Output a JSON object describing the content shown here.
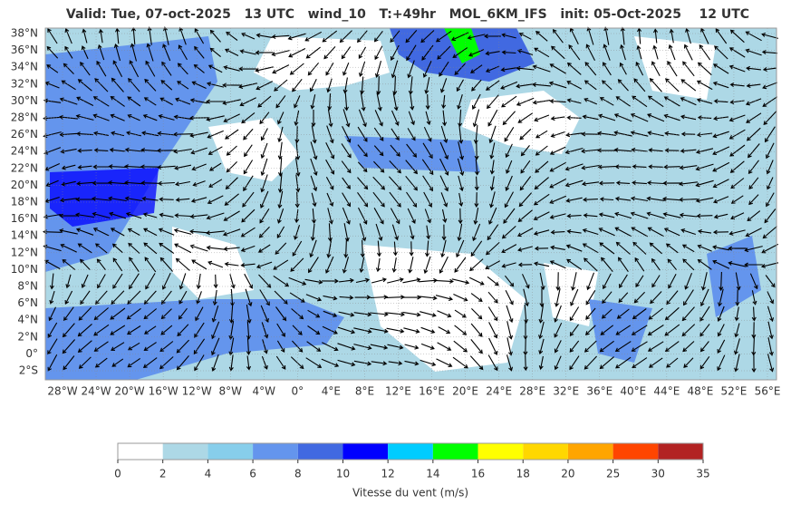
{
  "title": "Valid: Tue, 07-oct-2025   13 UTC   wind_10   T:+49hr   MOL_6KM_IFS   init: 05-Oct-2025    12 UTC",
  "map": {
    "lat_labels": [
      "38°N",
      "36°N",
      "34°N",
      "32°N",
      "30°N",
      "28°N",
      "26°N",
      "24°N",
      "22°N",
      "20°N",
      "18°N",
      "16°N",
      "14°N",
      "12°N",
      "10°N",
      "8°N",
      "6°N",
      "4°N",
      "2°N",
      "0°",
      "2°S"
    ],
    "lon_labels": [
      "28°W",
      "24°W",
      "20°W",
      "16°W",
      "12°W",
      "8°W",
      "4°W",
      "0°",
      "4°E",
      "8°E",
      "12°E",
      "16°E",
      "20°E",
      "24°E",
      "28°E",
      "32°E",
      "36°E",
      "40°E",
      "44°E",
      "48°E",
      "52°E",
      "56°E"
    ]
  },
  "colorbar": {
    "ticks": [
      0,
      2,
      4,
      6,
      8,
      10,
      12,
      14,
      16,
      18,
      20,
      25,
      30,
      35
    ],
    "colors": [
      "#ffffff",
      "#add8e6",
      "#87ceeb",
      "#6495ed",
      "#4169e1",
      "#0000ff",
      "#00ccff",
      "#00ff00",
      "#ffff00",
      "#ffd700",
      "#ffa500",
      "#ff4500",
      "#b22222"
    ],
    "label": "Vitesse du vent (m/s)"
  }
}
